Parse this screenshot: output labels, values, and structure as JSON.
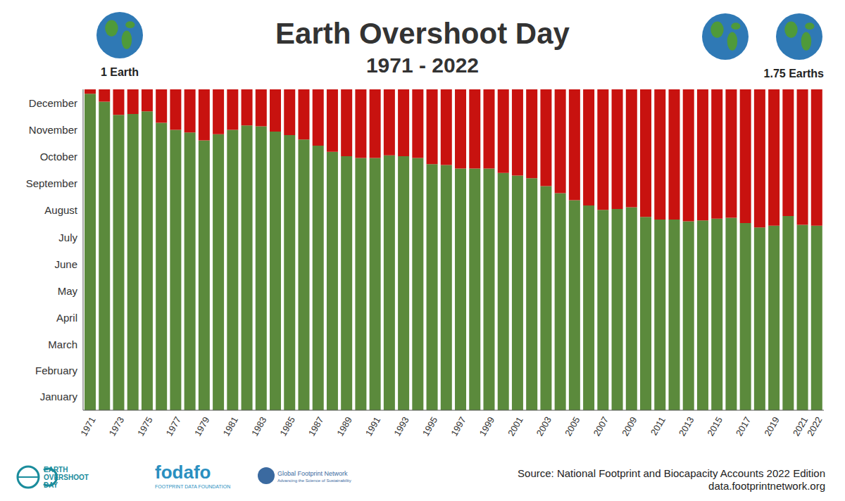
{
  "chart_data": {
    "type": "bar",
    "title": "Earth Overshoot Day",
    "subtitle": "1971 - 2022",
    "annotations": [
      "1 Earth",
      "1.75 Earths"
    ],
    "source": [
      "Source: National Footprint and Biocapacity Accounts 2022 Edition",
      "data.footprintnetwork.org"
    ],
    "logos": [
      "EARTH",
      "OVERSHOOT",
      "DAY",
      "fodafo",
      "FOOTPRINT DATA FOUNDATION",
      "Global Footprint Network",
      "Advancing the Science of Sustainability"
    ],
    "categories": [
      "1971",
      null,
      "1973",
      null,
      "1975",
      null,
      "1977",
      null,
      "1979",
      null,
      "1981",
      null,
      "1983",
      null,
      "1985",
      null,
      "1987",
      null,
      "1989",
      null,
      "1991",
      null,
      "1993",
      null,
      "1995",
      null,
      "1997",
      null,
      "1999",
      null,
      "2001",
      null,
      "2003",
      null,
      "2005",
      null,
      "2007",
      null,
      "2009",
      null,
      "2011",
      null,
      "2013",
      null,
      "2015",
      null,
      "2017",
      null,
      "2019",
      null,
      "2021",
      "2022"
    ],
    "stacked": true,
    "series": [
      {
        "color": "#5b8a3c",
        "values": [
          360,
          351,
          336,
          337,
          340,
          327,
          319,
          316,
          307,
          314,
          319,
          324,
          323,
          317,
          313,
          308,
          301,
          294,
          289,
          287,
          287,
          290,
          289,
          287,
          280,
          279,
          275,
          275,
          275,
          270,
          267,
          264,
          255,
          247,
          239,
          233,
          228,
          229,
          231,
          220,
          217,
          217,
          215,
          216,
          218,
          219,
          213,
          208,
          210,
          221,
          211,
          210
        ]
      },
      {
        "color": "#c8120f",
        "values": [
          5,
          14,
          29,
          28,
          25,
          38,
          46,
          49,
          58,
          51,
          46,
          41,
          42,
          48,
          52,
          57,
          64,
          71,
          76,
          78,
          78,
          75,
          76,
          78,
          85,
          86,
          90,
          90,
          90,
          95,
          98,
          101,
          110,
          118,
          126,
          132,
          137,
          136,
          134,
          145,
          148,
          148,
          150,
          149,
          147,
          146,
          152,
          157,
          155,
          144,
          154,
          155
        ]
      }
    ],
    "ylim": [
      0,
      365
    ],
    "yticks": [
      {
        "value": 15.5,
        "label": "January"
      },
      {
        "value": 45,
        "label": "February"
      },
      {
        "value": 74.5,
        "label": "March"
      },
      {
        "value": 105,
        "label": "April"
      },
      {
        "value": 135.5,
        "label": "May"
      },
      {
        "value": 166,
        "label": "June"
      },
      {
        "value": 196.5,
        "label": "July"
      },
      {
        "value": 227.5,
        "label": "August"
      },
      {
        "value": 258,
        "label": "September"
      },
      {
        "value": 288.5,
        "label": "October"
      },
      {
        "value": 319,
        "label": "November"
      },
      {
        "value": 349.5,
        "label": "December"
      }
    ],
    "grid": false
  }
}
